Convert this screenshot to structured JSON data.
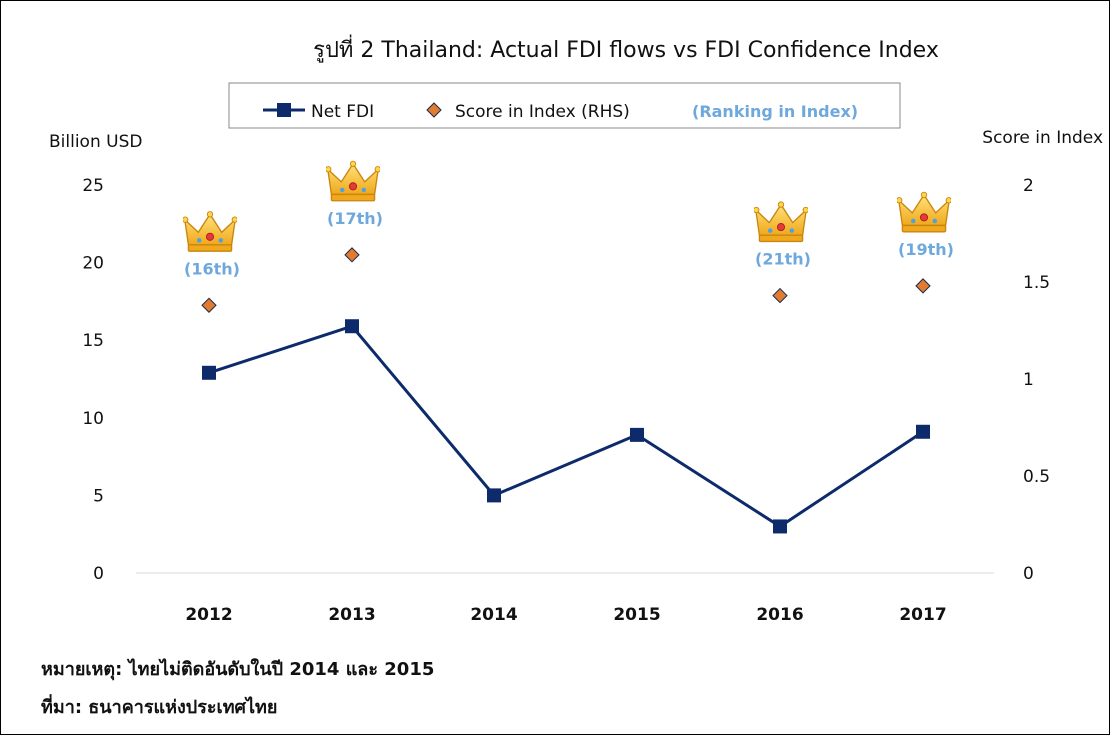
{
  "chart_data": {
    "type": "line",
    "title": "รูปที่ 2 Thailand: Actual FDI flows vs FDI Confidence Index",
    "ylabel": "Billion USD",
    "y2label": "Score in Index",
    "categories": [
      "2012",
      "2013",
      "2014",
      "2015",
      "2016",
      "2017"
    ],
    "ylim": [
      0,
      25
    ],
    "yticks": [
      0,
      5,
      10,
      15,
      20,
      25
    ],
    "y2lim": [
      0,
      2
    ],
    "y2ticks": [
      "0",
      "0.5",
      "1",
      "1.5",
      "2"
    ],
    "series": [
      {
        "name": "Net FDI",
        "axis": "left",
        "color": "#0d2b6b",
        "values": [
          12.9,
          15.9,
          5.0,
          8.9,
          3.0,
          9.1
        ]
      },
      {
        "name": "Score in Index (RHS)",
        "axis": "right",
        "color": "#e07b30",
        "values": [
          1.38,
          1.64,
          null,
          null,
          1.43,
          1.48
        ]
      }
    ],
    "legend_extra": "(Ranking in Index)",
    "rankings": [
      "(16th)",
      "(17th)",
      null,
      null,
      "(21th)",
      "(19th)"
    ],
    "legend_position": "top"
  },
  "notes": {
    "remark": "หมายเหตุ: ไทยไม่ติดอันดับในปี 2014 และ 2015",
    "source": "ที่มา: ธนาคารแห่งประเทศไทย"
  },
  "icons": {
    "ranking_marker": "crown-icon"
  }
}
